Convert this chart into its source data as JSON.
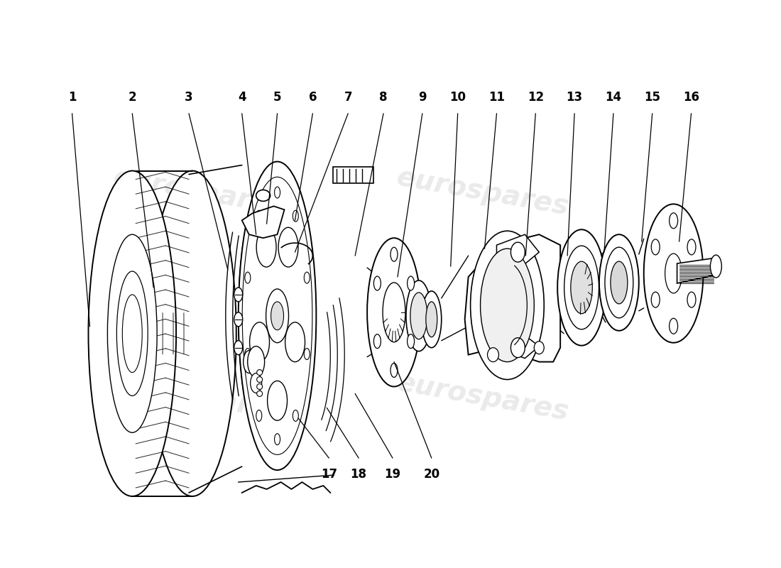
{
  "background_color": "#ffffff",
  "line_color": "#000000",
  "watermark_color": "#cccccc",
  "watermark_text": "eurospares",
  "label_color": "#000000",
  "top_labels": [
    "1",
    "2",
    "3",
    "4",
    "5",
    "6",
    "7",
    "8",
    "9",
    "10",
    "11",
    "12",
    "13",
    "14",
    "15",
    "16"
  ],
  "bottom_labels": [
    "17",
    "18",
    "19",
    "20"
  ],
  "label_fontsize": 12,
  "watermark_fontsize": 28
}
